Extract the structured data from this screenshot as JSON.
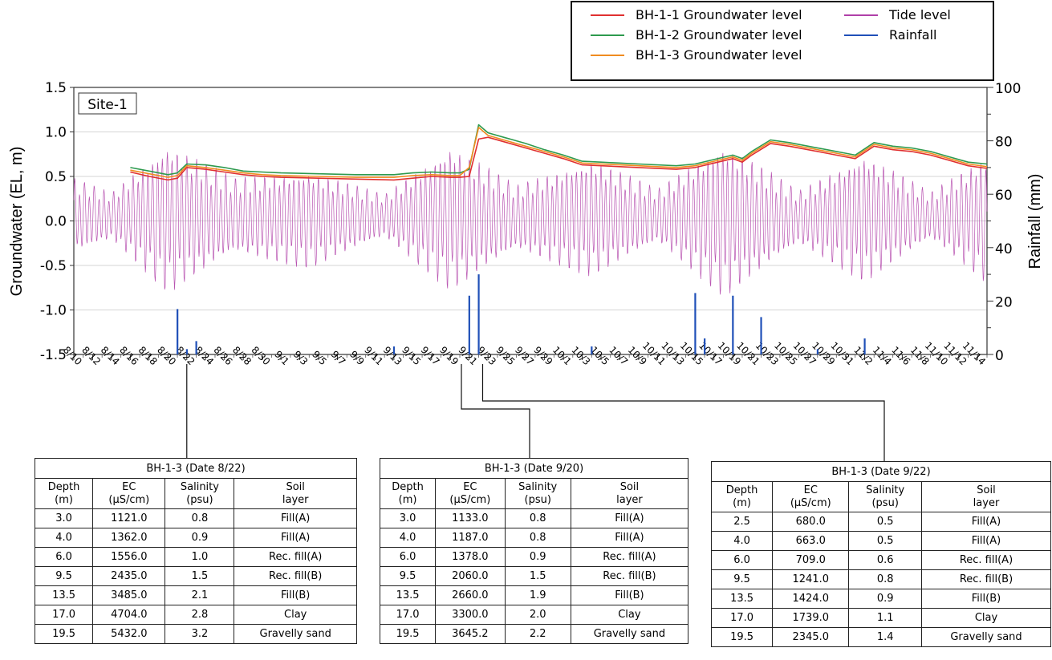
{
  "chart_data": {
    "type": "line",
    "title": "",
    "panel_label": "Site-1",
    "ylabel_left": "Groundwater (EL, m)",
    "ylabel_right": "Rainfall (mm)",
    "xlabel": "",
    "ylim_left": [
      -1.5,
      1.5
    ],
    "ylim_right": [
      0,
      100
    ],
    "yticks_left": [
      "1.5",
      "1.0",
      "0.5",
      "0.0",
      "-0.5",
      "-1.0",
      "-1.5"
    ],
    "yticks_right": [
      "100",
      "80",
      "60",
      "40",
      "20",
      "0"
    ],
    "x_start": "8/10",
    "x_end": "11/15",
    "x_ticks": [
      "8/10",
      "8/12",
      "8/14",
      "8/16",
      "8/18",
      "8/20",
      "8/22",
      "8/24",
      "8/26",
      "8/28",
      "8/30",
      "9/1",
      "9/3",
      "9/5",
      "9/7",
      "9/9",
      "9/11",
      "9/13",
      "9/15",
      "9/17",
      "9/19",
      "9/21",
      "9/23",
      "9/25",
      "9/27",
      "9/29",
      "10/1",
      "10/3",
      "10/5",
      "10/7",
      "10/9",
      "10/11",
      "10/13",
      "10/15",
      "10/17",
      "10/19",
      "10/21",
      "10/23",
      "10/25",
      "10/27",
      "10/29",
      "10/31",
      "11/2",
      "11/4",
      "11/6",
      "11/8",
      "11/10",
      "11/12",
      "11/14"
    ],
    "grid": true,
    "legend_position": "top-right",
    "legend": [
      {
        "name": "BH-1-1 Groundwater level",
        "color": "#e03030"
      },
      {
        "name": "BH-1-2 Groundwater level",
        "color": "#2e9a4e"
      },
      {
        "name": "BH-1-3 Groundwater level",
        "color": "#f08c20"
      },
      {
        "name": "Tide level",
        "color": "#b040a8"
      },
      {
        "name": "Rainfall",
        "color": "#2050b8"
      }
    ],
    "series": [
      {
        "name": "BH-1-1 Groundwater level",
        "color": "#e03030",
        "x": [
          "8/16",
          "8/18",
          "8/20",
          "8/21",
          "8/22",
          "8/24",
          "8/26",
          "8/28",
          "8/30",
          "9/1",
          "9/5",
          "9/9",
          "9/13",
          "9/15",
          "9/17",
          "9/19",
          "9/20",
          "9/21",
          "9/22",
          "9/23",
          "9/25",
          "9/27",
          "9/29",
          "10/1",
          "10/3",
          "10/5",
          "10/9",
          "10/13",
          "10/15",
          "10/17",
          "10/19",
          "10/20",
          "10/21",
          "10/23",
          "10/25",
          "10/27",
          "10/29",
          "10/31",
          "11/1",
          "11/3",
          "11/5",
          "11/7",
          "11/9",
          "11/11",
          "11/13",
          "11/15"
        ],
        "y": [
          0.55,
          0.5,
          0.46,
          0.48,
          0.6,
          0.58,
          0.55,
          0.52,
          0.5,
          0.49,
          0.48,
          0.47,
          0.46,
          0.48,
          0.5,
          0.49,
          0.49,
          0.5,
          0.92,
          0.94,
          0.88,
          0.82,
          0.76,
          0.7,
          0.63,
          0.62,
          0.6,
          0.58,
          0.6,
          0.65,
          0.7,
          0.66,
          0.74,
          0.87,
          0.84,
          0.8,
          0.76,
          0.72,
          0.7,
          0.84,
          0.8,
          0.78,
          0.74,
          0.68,
          0.62,
          0.59
        ]
      },
      {
        "name": "BH-1-2 Groundwater level",
        "color": "#2e9a4e",
        "x": [
          "8/16",
          "8/18",
          "8/20",
          "8/21",
          "8/22",
          "8/24",
          "8/26",
          "8/28",
          "8/30",
          "9/1",
          "9/5",
          "9/9",
          "9/13",
          "9/15",
          "9/17",
          "9/19",
          "9/20",
          "9/21",
          "9/22",
          "9/23",
          "9/25",
          "9/27",
          "9/29",
          "10/1",
          "10/3",
          "10/5",
          "10/9",
          "10/13",
          "10/15",
          "10/17",
          "10/19",
          "10/20",
          "10/21",
          "10/23",
          "10/25",
          "10/27",
          "10/29",
          "10/31",
          "11/1",
          "11/3",
          "11/5",
          "11/7",
          "11/9",
          "11/11",
          "11/13",
          "11/15"
        ],
        "y": [
          0.6,
          0.56,
          0.52,
          0.54,
          0.64,
          0.63,
          0.6,
          0.56,
          0.55,
          0.54,
          0.53,
          0.52,
          0.52,
          0.54,
          0.55,
          0.54,
          0.54,
          0.58,
          1.08,
          0.99,
          0.93,
          0.87,
          0.8,
          0.74,
          0.67,
          0.66,
          0.64,
          0.62,
          0.64,
          0.69,
          0.74,
          0.7,
          0.78,
          0.91,
          0.88,
          0.84,
          0.8,
          0.76,
          0.74,
          0.88,
          0.84,
          0.82,
          0.78,
          0.72,
          0.66,
          0.64
        ]
      },
      {
        "name": "BH-1-3 Groundwater level",
        "color": "#f08c20",
        "x": [
          "8/16",
          "8/18",
          "8/20",
          "8/21",
          "8/22",
          "8/24",
          "8/26",
          "8/28",
          "8/30",
          "9/1",
          "9/5",
          "9/9",
          "9/13",
          "9/15",
          "9/17",
          "9/19",
          "9/20",
          "9/21",
          "9/22",
          "9/23",
          "9/25",
          "9/27",
          "9/29",
          "10/1",
          "10/3",
          "10/5",
          "10/9",
          "10/13",
          "10/15",
          "10/17",
          "10/19",
          "10/20",
          "10/21",
          "10/23",
          "10/25",
          "10/27",
          "10/29",
          "10/31",
          "11/1",
          "11/3",
          "11/5",
          "11/7",
          "11/9",
          "11/11",
          "11/13",
          "11/15"
        ],
        "y": [
          0.57,
          0.53,
          0.49,
          0.51,
          0.62,
          0.6,
          0.57,
          0.54,
          0.52,
          0.51,
          0.5,
          0.49,
          0.49,
          0.51,
          0.52,
          0.51,
          0.51,
          0.6,
          1.05,
          0.96,
          0.9,
          0.84,
          0.78,
          0.72,
          0.65,
          0.64,
          0.62,
          0.6,
          0.62,
          0.67,
          0.72,
          0.68,
          0.76,
          0.89,
          0.86,
          0.82,
          0.78,
          0.74,
          0.72,
          0.86,
          0.82,
          0.8,
          0.76,
          0.7,
          0.64,
          0.61
        ]
      },
      {
        "name": "Tide level",
        "color": "#b040a8",
        "x": [
          "8/10",
          "8/14",
          "8/20",
          "8/27",
          "9/4",
          "9/12",
          "9/19",
          "9/26",
          "10/4",
          "10/11",
          "10/18",
          "10/26",
          "11/2",
          "11/9",
          "11/15"
        ],
        "amplitude": [
          0.35,
          0.22,
          0.7,
          0.35,
          0.45,
          0.2,
          0.68,
          0.3,
          0.55,
          0.25,
          0.72,
          0.25,
          0.6,
          0.22,
          0.6
        ],
        "y": [
          0.05,
          0.05,
          0.05,
          0.05,
          0.02,
          0.05,
          0.05,
          0.03,
          0.05,
          0.05,
          0.03,
          0.03,
          0.05,
          0.05,
          0.03
        ]
      },
      {
        "name": "Rainfall",
        "color": "#2050b8",
        "axis": "right",
        "x": [
          "8/21",
          "8/22",
          "8/23",
          "9/13",
          "9/21",
          "9/22",
          "10/4",
          "10/15",
          "10/16",
          "10/19",
          "10/22",
          "10/28",
          "11/2"
        ],
        "y": [
          17,
          2,
          5,
          3,
          22,
          30,
          3,
          23,
          6,
          22,
          14,
          2,
          6
        ]
      }
    ],
    "tables": [
      {
        "title": "BH-1-3 (Date 8/22)",
        "headers": [
          [
            "Depth",
            "(m)"
          ],
          [
            "EC",
            "(μS/cm)"
          ],
          [
            "Salinity",
            "(psu)"
          ],
          [
            "Soil",
            "layer"
          ]
        ],
        "rows": [
          [
            "3.0",
            "1121.0",
            "0.8",
            "Fill(A)"
          ],
          [
            "4.0",
            "1362.0",
            "0.9",
            "Fill(A)"
          ],
          [
            "6.0",
            "1556.0",
            "1.0",
            "Rec. fill(A)"
          ],
          [
            "9.5",
            "2435.0",
            "1.5",
            "Rec. fill(B)"
          ],
          [
            "13.5",
            "3485.0",
            "2.1",
            "Fill(B)"
          ],
          [
            "17.0",
            "4704.0",
            "2.8",
            "Clay"
          ],
          [
            "19.5",
            "5432.0",
            "3.2",
            "Gravelly sand"
          ]
        ]
      },
      {
        "title": "BH-1-3 (Date 9/20)",
        "headers": [
          [
            "Depth",
            "(m)"
          ],
          [
            "EC",
            "(μS/cm)"
          ],
          [
            "Salinity",
            "(psu)"
          ],
          [
            "Soil",
            "layer"
          ]
        ],
        "rows": [
          [
            "3.0",
            "1133.0",
            "0.8",
            "Fill(A)"
          ],
          [
            "4.0",
            "1187.0",
            "0.8",
            "Fill(A)"
          ],
          [
            "6.0",
            "1378.0",
            "0.9",
            "Rec. fill(A)"
          ],
          [
            "9.5",
            "2060.0",
            "1.5",
            "Rec. fill(B)"
          ],
          [
            "13.5",
            "2660.0",
            "1.9",
            "Fill(B)"
          ],
          [
            "17.0",
            "3300.0",
            "2.0",
            "Clay"
          ],
          [
            "19.5",
            "3645.2",
            "2.2",
            "Gravelly sand"
          ]
        ]
      },
      {
        "title": "BH-1-3 (Date 9/22)",
        "headers": [
          [
            "Depth",
            "(m)"
          ],
          [
            "EC",
            "(μS/cm)"
          ],
          [
            "Salinity",
            "(psu)"
          ],
          [
            "Soil",
            "layer"
          ]
        ],
        "rows": [
          [
            "2.5",
            "680.0",
            "0.5",
            "Fill(A)"
          ],
          [
            "4.0",
            "663.0",
            "0.5",
            "Fill(A)"
          ],
          [
            "6.0",
            "709.0",
            "0.6",
            "Rec. fill(A)"
          ],
          [
            "9.5",
            "1241.0",
            "0.8",
            "Rec. fill(B)"
          ],
          [
            "13.5",
            "1424.0",
            "0.9",
            "Fill(B)"
          ],
          [
            "17.0",
            "1739.0",
            "1.1",
            "Clay"
          ],
          [
            "19.5",
            "2345.0",
            "1.4",
            "Gravelly sand"
          ]
        ]
      }
    ],
    "callout_dates": [
      "8/22",
      "9/20",
      "9/22"
    ]
  }
}
